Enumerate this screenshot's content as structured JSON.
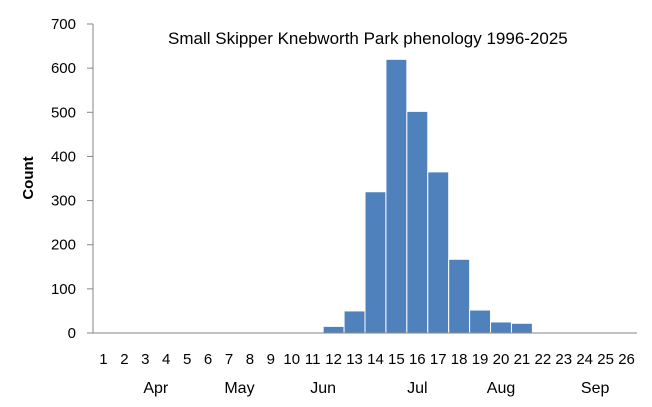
{
  "chart_data": {
    "type": "bar",
    "title": "Small Skipper Knebworth Park phenology 1996-2025",
    "ylabel": "Count",
    "xlabel": "",
    "ylim": [
      0,
      700
    ],
    "yticks": [
      0,
      100,
      200,
      300,
      400,
      500,
      600,
      700
    ],
    "grid": false,
    "legend": "none",
    "bar_color": "#4f81bd",
    "categories": [
      "1",
      "2",
      "3",
      "4",
      "5",
      "6",
      "7",
      "8",
      "9",
      "10",
      "11",
      "12",
      "13",
      "14",
      "15",
      "16",
      "17",
      "18",
      "19",
      "20",
      "21",
      "22",
      "23",
      "24",
      "25",
      "26"
    ],
    "values": [
      0,
      0,
      0,
      0,
      0,
      0,
      0,
      0,
      0,
      0,
      0,
      15,
      50,
      320,
      620,
      502,
      365,
      167,
      52,
      25,
      22,
      0,
      0,
      0,
      0,
      0
    ],
    "months": [
      {
        "label": "Apr",
        "center_week": 3.5
      },
      {
        "label": "May",
        "center_week": 7.5
      },
      {
        "label": "Jun",
        "center_week": 11.5
      },
      {
        "label": "Jul",
        "center_week": 16
      },
      {
        "label": "Aug",
        "center_week": 20
      },
      {
        "label": "Sep",
        "center_week": 24.5
      }
    ]
  }
}
